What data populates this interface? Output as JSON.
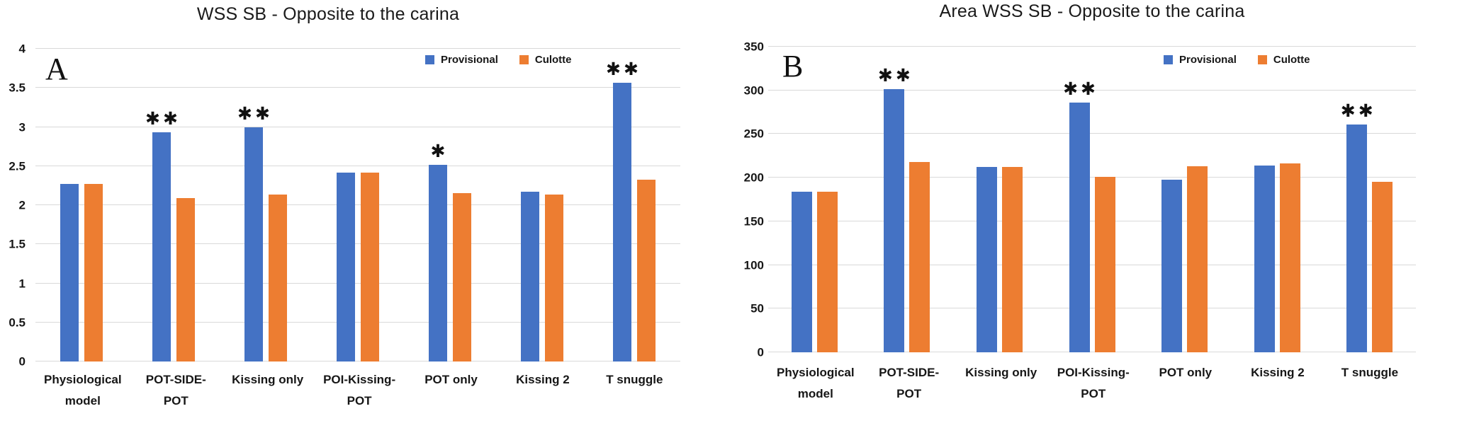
{
  "figure": {
    "background": "#ffffff",
    "gridline_color": "#d9d9d9",
    "text_color": "#161616"
  },
  "chart_data": [
    {
      "type": "bar",
      "panel_label": "A",
      "title": "WSS SB - Opposite to the carina",
      "xlabel": "",
      "ylabel": "",
      "ylim": [
        0,
        4
      ],
      "yticks": [
        0,
        0.5,
        1,
        1.5,
        2,
        2.5,
        3,
        3.5,
        4
      ],
      "grid": true,
      "legend_position": "top-right-inline",
      "categories": [
        "Physiological model",
        "POT-SIDE-POT",
        "Kissing only",
        "POI-Kissing-POT",
        "POT only",
        "Kissing 2",
        "T snuggle"
      ],
      "series": [
        {
          "name": "Provisional",
          "color": "#4472c4",
          "values": [
            2.27,
            2.93,
            3.0,
            2.42,
            2.52,
            2.17,
            3.57
          ]
        },
        {
          "name": "Culotte",
          "color": "#ed7d31",
          "values": [
            2.27,
            2.09,
            2.14,
            2.42,
            2.15,
            2.14,
            2.33
          ]
        }
      ],
      "significance": [
        "",
        "**",
        "**",
        "",
        "*",
        "",
        "**"
      ]
    },
    {
      "type": "bar",
      "panel_label": "B",
      "title": "Area WSS SB - Opposite to the carina",
      "xlabel": "",
      "ylabel": "",
      "ylim": [
        0,
        350
      ],
      "yticks": [
        0,
        50,
        100,
        150,
        200,
        250,
        300,
        350
      ],
      "grid": true,
      "legend_position": "top-right-inline",
      "categories": [
        "Physiological model",
        "POT-SIDE-POT",
        "Kissing only",
        "POI-Kissing-POT",
        "POT only",
        "Kissing 2",
        "T snuggle"
      ],
      "series": [
        {
          "name": "Provisional",
          "color": "#4472c4",
          "values": [
            184,
            301,
            212,
            286,
            198,
            214,
            261
          ]
        },
        {
          "name": "Culotte",
          "color": "#ed7d31",
          "values": [
            184,
            218,
            212,
            201,
            213,
            216,
            195
          ]
        }
      ],
      "significance": [
        "",
        "**",
        "",
        "**",
        "",
        "",
        "**"
      ]
    }
  ]
}
